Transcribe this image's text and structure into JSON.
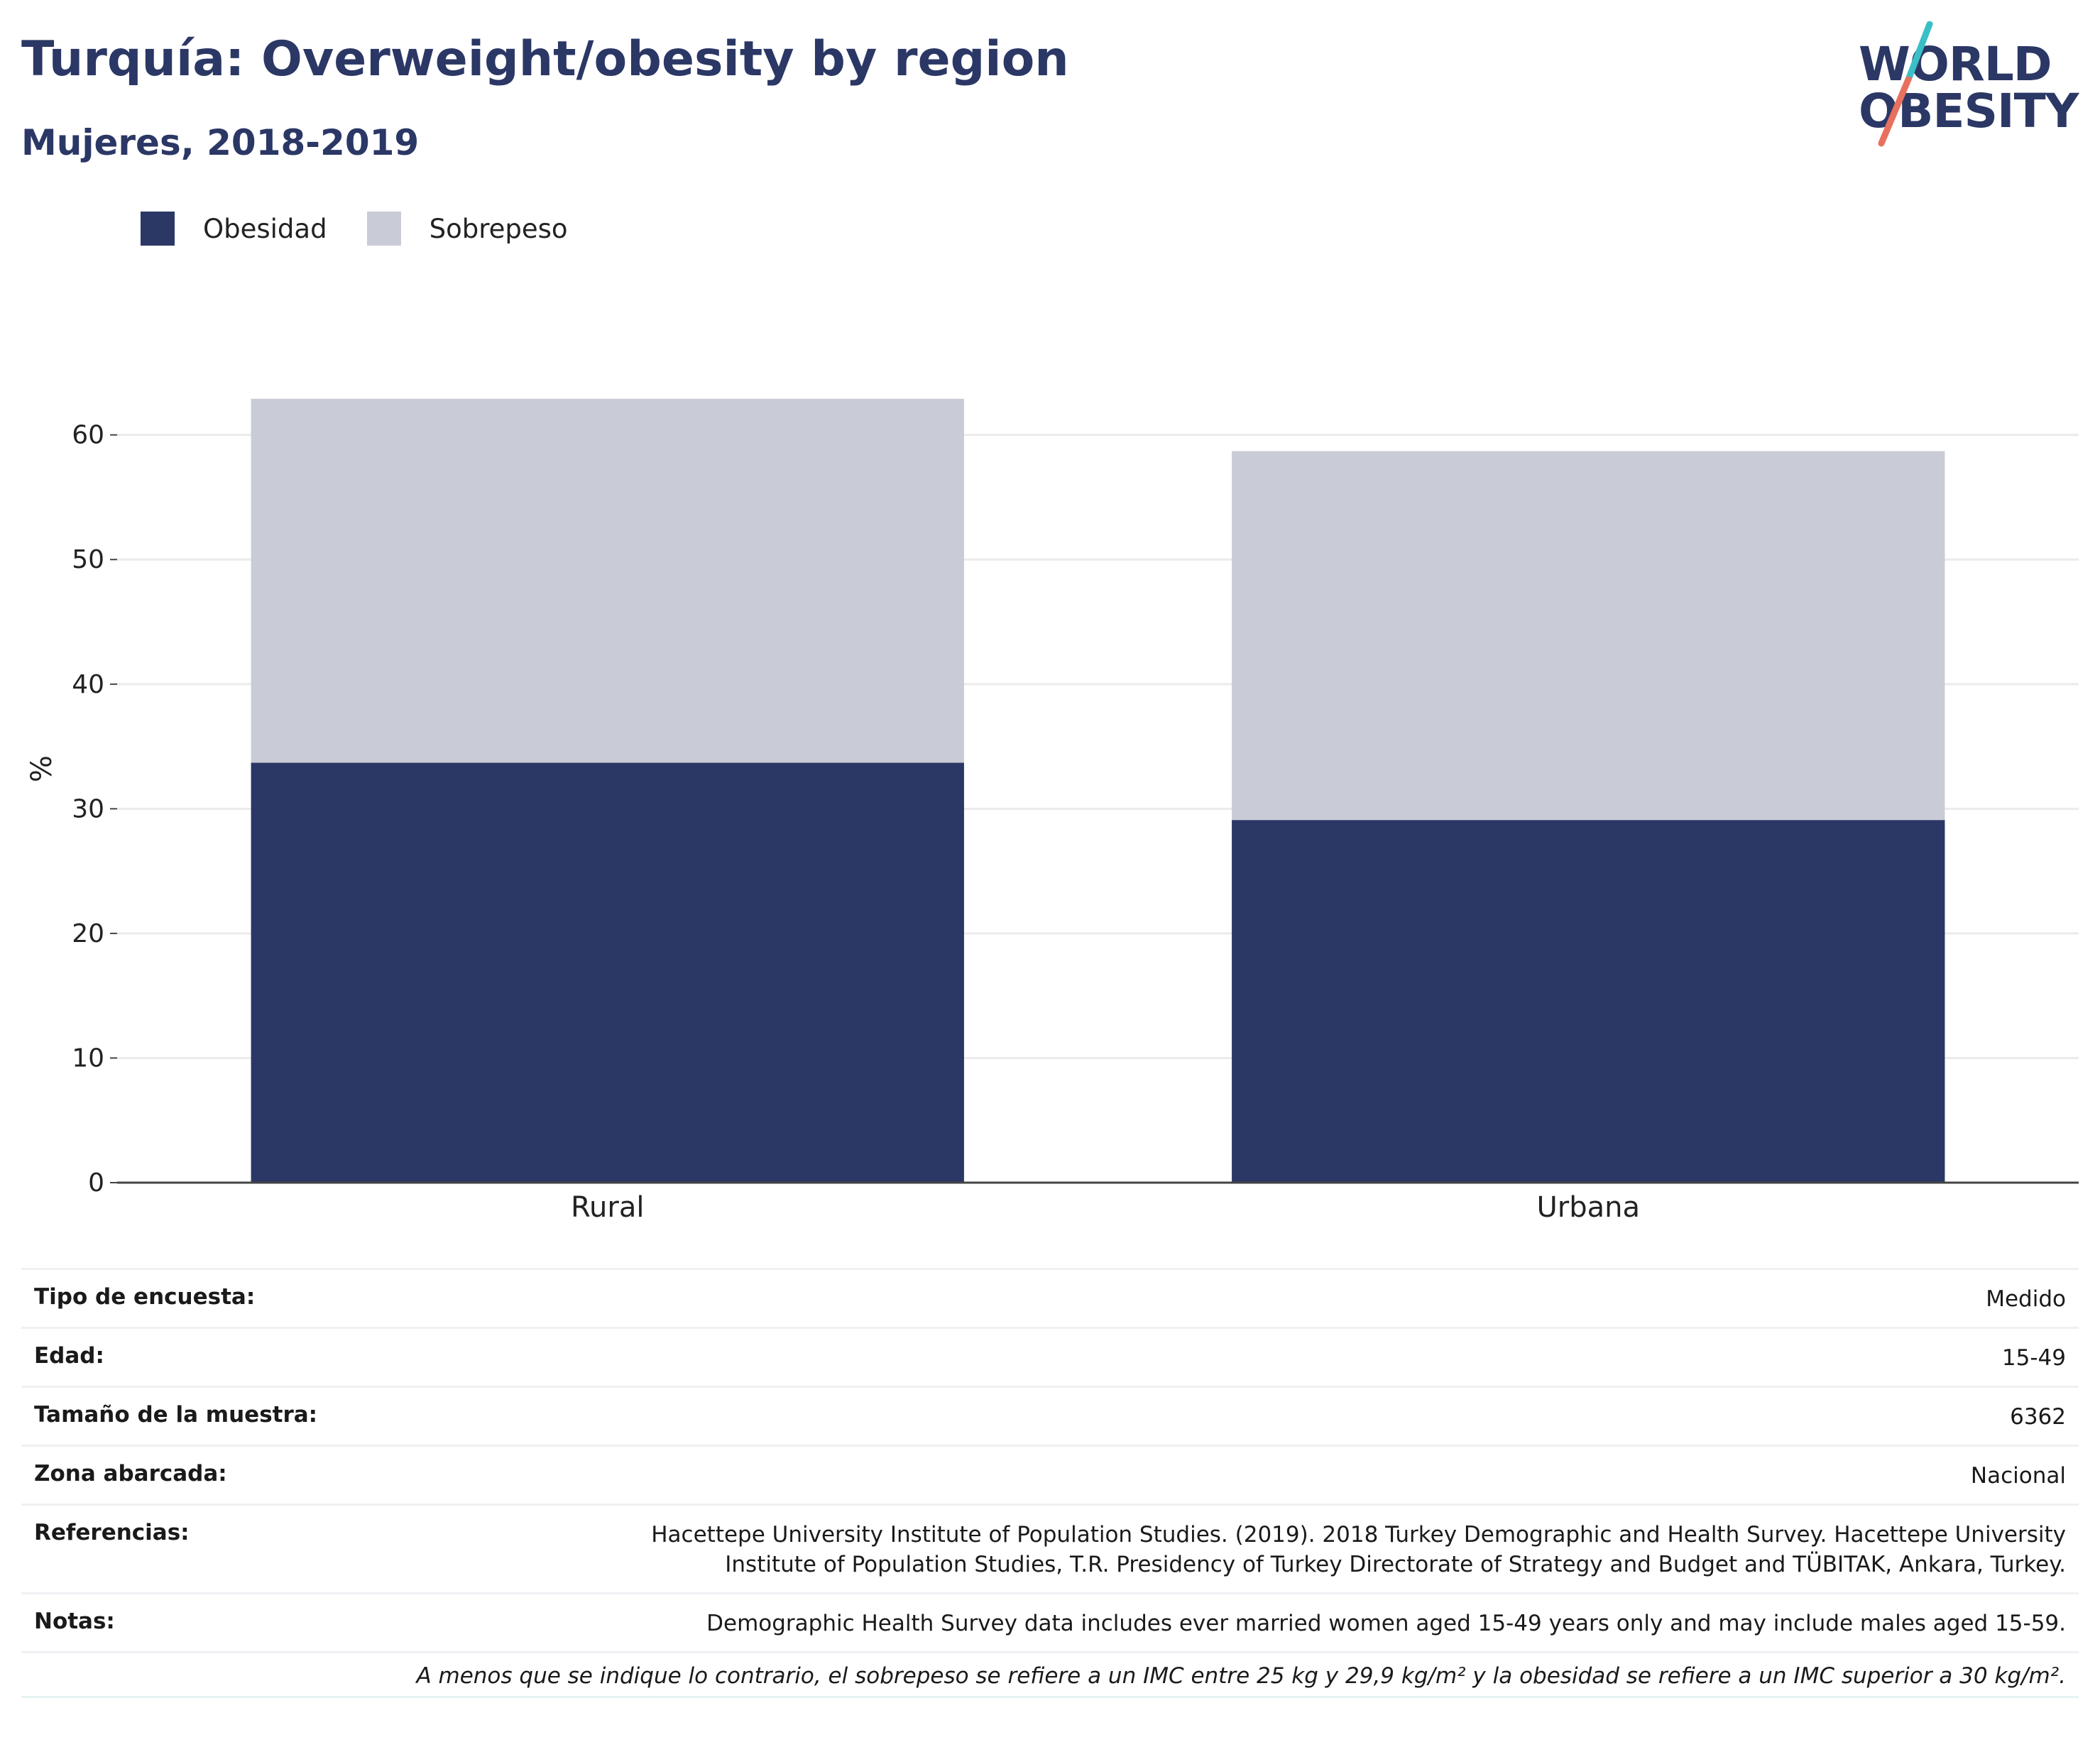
{
  "header": {
    "title": "Turquía: Overweight/obesity by region",
    "subtitle": "Mujeres, 2018-2019"
  },
  "logo": {
    "line1": "WORLD",
    "line2": "OBESITY",
    "colors": {
      "text": "#2b3765",
      "slash_top": "#3bbfc7",
      "slash_bottom": "#e8705f"
    }
  },
  "colors": {
    "obesity": "#2b3765",
    "overweight": "#c9ccd7",
    "grid": "#ebebeb",
    "axis": "#444444"
  },
  "chart_data": {
    "type": "bar",
    "stacked": true,
    "categories": [
      "Rural",
      "Urbana"
    ],
    "series": [
      {
        "name": "Obesidad",
        "values": [
          33.7,
          29.1
        ],
        "color": "#2b3765"
      },
      {
        "name": "Sobrepeso",
        "values": [
          29.2,
          29.6
        ],
        "color": "#c9ccd7"
      }
    ],
    "ylabel": "%",
    "ylim": [
      0,
      63
    ],
    "yticks": [
      0,
      10,
      20,
      30,
      40,
      50,
      60
    ],
    "grid": true,
    "legend": "top-left"
  },
  "info": {
    "rows": [
      {
        "key": "Tipo de encuesta:",
        "value": "Medido"
      },
      {
        "key": "Edad:",
        "value": "15-49"
      },
      {
        "key": "Tamaño de la muestra:",
        "value": "6362"
      },
      {
        "key": "Zona abarcada:",
        "value": "Nacional"
      }
    ],
    "references_key": "Referencias:",
    "references_line1": "Hacettepe University Institute of Population Studies. (2019). 2018 Turkey Demographic and Health Survey. Hacettepe University",
    "references_line2": "Institute of Population Studies, T.R. Presidency of Turkey Directorate of Strategy and Budget and TÜBITAK, Ankara, Turkey.",
    "notes_key": "Notas:",
    "notes_value": "Demographic Health Survey data includes ever married women aged 15-49 years only and may include males aged 15-59.",
    "footnote": "A menos que se indique lo contrario, el sobrepeso se refiere a un IMC entre 25 kg y 29,9 kg/m² y la obesidad se refiere a un IMC superior a 30 kg/m²."
  }
}
